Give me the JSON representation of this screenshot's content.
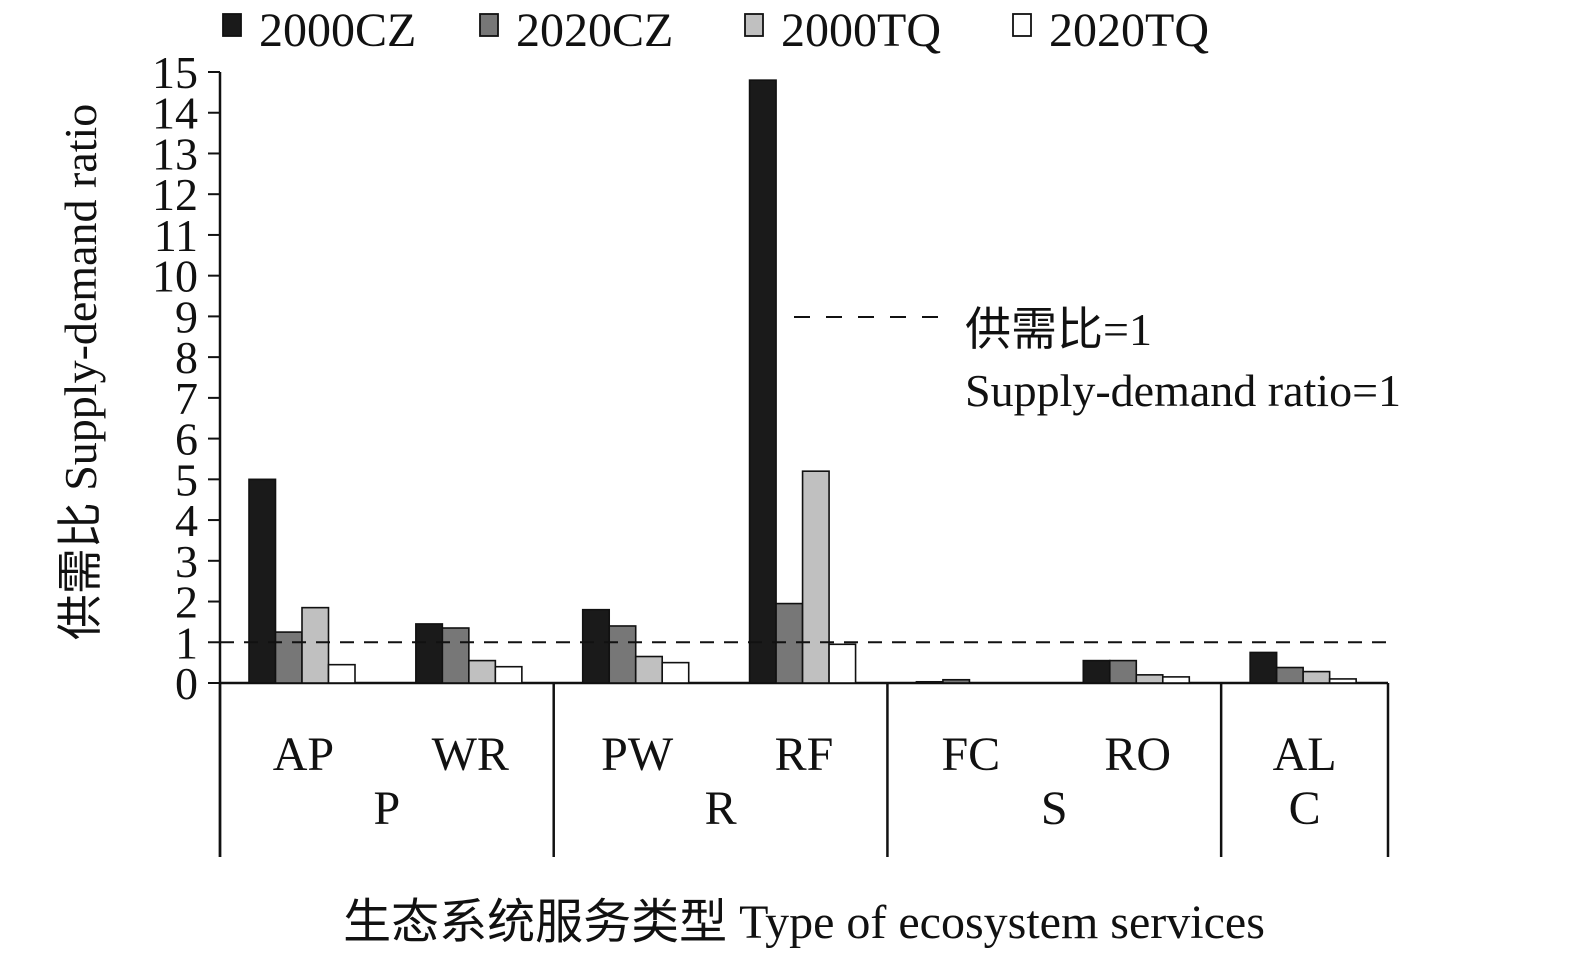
{
  "chart_data": {
    "type": "bar",
    "ylabel": "供需比 Supply-demand ratio",
    "xlabel": "生态系统服务类型 Type of ecosystem services",
    "ylim": [
      0,
      15
    ],
    "yticks": [
      "0",
      "1",
      "2",
      "3",
      "4",
      "5",
      "6",
      "7",
      "8",
      "9",
      "10",
      "11",
      "12",
      "13",
      "14",
      "15"
    ],
    "categories": [
      "AP",
      "WR",
      "PW",
      "RF",
      "FC",
      "RO",
      "AL"
    ],
    "groups": [
      {
        "label": "P",
        "categories": [
          "AP",
          "WR"
        ]
      },
      {
        "label": "R",
        "categories": [
          "PW",
          "RF"
        ]
      },
      {
        "label": "S",
        "categories": [
          "FC",
          "RO"
        ]
      },
      {
        "label": "C",
        "categories": [
          "AL"
        ]
      }
    ],
    "series": [
      {
        "name": "2000CZ",
        "color": "#1a1a1a",
        "values": [
          5.0,
          1.45,
          1.8,
          14.8,
          0.03,
          0.55,
          0.75
        ]
      },
      {
        "name": "2020CZ",
        "color": "#777777",
        "values": [
          1.25,
          1.35,
          1.4,
          1.95,
          0.08,
          0.55,
          0.38
        ]
      },
      {
        "name": "2000TQ",
        "color": "#c0c0c0",
        "values": [
          1.85,
          0.55,
          0.65,
          5.2,
          0.0,
          0.2,
          0.28
        ]
      },
      {
        "name": "2020TQ",
        "color": "#ffffff",
        "values": [
          0.45,
          0.4,
          0.5,
          0.95,
          0.0,
          0.15,
          0.1
        ]
      }
    ],
    "reference_line": {
      "value": 1,
      "style": "dashed",
      "label_zh": "供需比=1",
      "label_en": "Supply-demand ratio=1"
    },
    "legend_position": "top",
    "grid": false
  }
}
